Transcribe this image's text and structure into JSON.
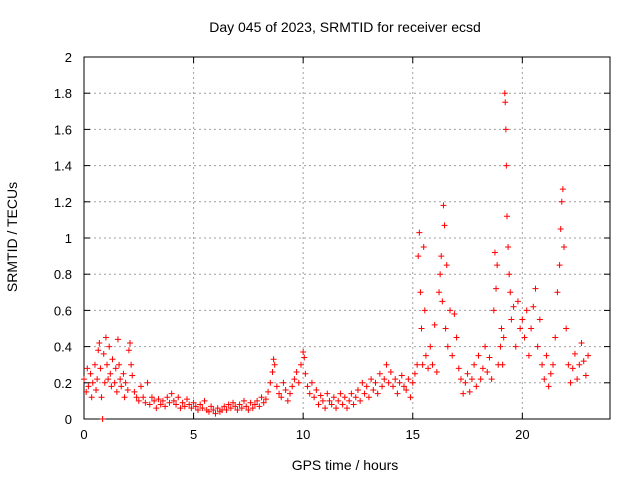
{
  "chart_data": {
    "type": "scatter",
    "title": "Day 045 of 2023, SRMTID for receiver ecsd",
    "xlabel": "GPS time / hours",
    "ylabel": "SRMTID / TECUs",
    "xlim": [
      0,
      24
    ],
    "ylim": [
      0,
      2
    ],
    "xticks": [
      0,
      5,
      10,
      15,
      20
    ],
    "yticks": [
      0,
      0.2,
      0.4,
      0.6,
      0.8,
      1,
      1.2,
      1.4,
      1.6,
      1.8,
      2
    ],
    "ytick_labels": [
      "0",
      "0.2",
      "0.4",
      "0.6",
      "0.8",
      "1",
      "1.2",
      "1.4",
      "1.6",
      "1.8",
      "2"
    ],
    "grid": true,
    "marker": "+",
    "colors": {
      "points": "#ff0000",
      "grid": "#a0a0a0",
      "axes": "#000000"
    },
    "series": [
      {
        "name": "ecsd",
        "points": [
          [
            0.0,
            0.22
          ],
          [
            0.1,
            0.15
          ],
          [
            0.15,
            0.28
          ],
          [
            0.2,
            0.18
          ],
          [
            0.3,
            0.25
          ],
          [
            0.35,
            0.12
          ],
          [
            0.4,
            0.2
          ],
          [
            0.5,
            0.3
          ],
          [
            0.55,
            0.16
          ],
          [
            0.6,
            0.22
          ],
          [
            0.65,
            0.38
          ],
          [
            0.7,
            0.42
          ],
          [
            0.75,
            0.28
          ],
          [
            0.8,
            0.12
          ],
          [
            0.85,
            0.0
          ],
          [
            0.9,
            0.36
          ],
          [
            0.95,
            0.2
          ],
          [
            1.0,
            0.45
          ],
          [
            1.05,
            0.3
          ],
          [
            1.1,
            0.22
          ],
          [
            1.15,
            0.4
          ],
          [
            1.2,
            0.25
          ],
          [
            1.25,
            0.18
          ],
          [
            1.3,
            0.33
          ],
          [
            1.4,
            0.2
          ],
          [
            1.45,
            0.28
          ],
          [
            1.5,
            0.15
          ],
          [
            1.55,
            0.44
          ],
          [
            1.6,
            0.3
          ],
          [
            1.65,
            0.22
          ],
          [
            1.7,
            0.18
          ],
          [
            1.8,
            0.25
          ],
          [
            1.85,
            0.12
          ],
          [
            1.9,
            0.2
          ],
          [
            2.0,
            0.16
          ],
          [
            2.05,
            0.38
          ],
          [
            2.1,
            0.42
          ],
          [
            2.15,
            0.3
          ],
          [
            2.2,
            0.24
          ],
          [
            2.3,
            0.15
          ],
          [
            2.4,
            0.12
          ],
          [
            2.5,
            0.1
          ],
          [
            2.6,
            0.18
          ],
          [
            2.7,
            0.12
          ],
          [
            2.8,
            0.09
          ],
          [
            2.9,
            0.2
          ],
          [
            3.0,
            0.08
          ],
          [
            3.1,
            0.12
          ],
          [
            3.2,
            0.1
          ],
          [
            3.3,
            0.06
          ],
          [
            3.4,
            0.11
          ],
          [
            3.5,
            0.08
          ],
          [
            3.6,
            0.1
          ],
          [
            3.7,
            0.07
          ],
          [
            3.8,
            0.12
          ],
          [
            3.9,
            0.09
          ],
          [
            4.0,
            0.14
          ],
          [
            4.1,
            0.1
          ],
          [
            4.2,
            0.08
          ],
          [
            4.3,
            0.12
          ],
          [
            4.4,
            0.06
          ],
          [
            4.5,
            0.09
          ],
          [
            4.6,
            0.07
          ],
          [
            4.7,
            0.11
          ],
          [
            4.8,
            0.08
          ],
          [
            4.9,
            0.06
          ],
          [
            5.0,
            0.09
          ],
          [
            5.1,
            0.07
          ],
          [
            5.2,
            0.05
          ],
          [
            5.3,
            0.08
          ],
          [
            5.4,
            0.06
          ],
          [
            5.5,
            0.1
          ],
          [
            5.6,
            0.05
          ],
          [
            5.7,
            0.04
          ],
          [
            5.8,
            0.07
          ],
          [
            5.9,
            0.05
          ],
          [
            6.0,
            0.03
          ],
          [
            6.1,
            0.06
          ],
          [
            6.2,
            0.04
          ],
          [
            6.3,
            0.05
          ],
          [
            6.4,
            0.07
          ],
          [
            6.5,
            0.05
          ],
          [
            6.6,
            0.08
          ],
          [
            6.7,
            0.06
          ],
          [
            6.8,
            0.09
          ],
          [
            6.9,
            0.07
          ],
          [
            7.0,
            0.05
          ],
          [
            7.1,
            0.08
          ],
          [
            7.2,
            0.06
          ],
          [
            7.3,
            0.1
          ],
          [
            7.4,
            0.07
          ],
          [
            7.5,
            0.05
          ],
          [
            7.6,
            0.09
          ],
          [
            7.7,
            0.06
          ],
          [
            7.8,
            0.08
          ],
          [
            7.9,
            0.1
          ],
          [
            8.0,
            0.07
          ],
          [
            8.1,
            0.12
          ],
          [
            8.2,
            0.09
          ],
          [
            8.3,
            0.11
          ],
          [
            8.4,
            0.15
          ],
          [
            8.5,
            0.2
          ],
          [
            8.6,
            0.26
          ],
          [
            8.65,
            0.33
          ],
          [
            8.7,
            0.3
          ],
          [
            8.8,
            0.18
          ],
          [
            8.9,
            0.14
          ],
          [
            9.0,
            0.12
          ],
          [
            9.1,
            0.2
          ],
          [
            9.2,
            0.16
          ],
          [
            9.3,
            0.1
          ],
          [
            9.4,
            0.14
          ],
          [
            9.5,
            0.18
          ],
          [
            9.6,
            0.22
          ],
          [
            9.7,
            0.26
          ],
          [
            9.8,
            0.2
          ],
          [
            9.9,
            0.3
          ],
          [
            10.0,
            0.37
          ],
          [
            10.05,
            0.34
          ],
          [
            10.1,
            0.25
          ],
          [
            10.2,
            0.18
          ],
          [
            10.3,
            0.14
          ],
          [
            10.4,
            0.2
          ],
          [
            10.5,
            0.12
          ],
          [
            10.6,
            0.16
          ],
          [
            10.7,
            0.08
          ],
          [
            10.8,
            0.13
          ],
          [
            10.9,
            0.1
          ],
          [
            11.0,
            0.06
          ],
          [
            11.1,
            0.14
          ],
          [
            11.2,
            0.1
          ],
          [
            11.3,
            0.08
          ],
          [
            11.4,
            0.12
          ],
          [
            11.5,
            0.06
          ],
          [
            11.6,
            0.1
          ],
          [
            11.7,
            0.14
          ],
          [
            11.8,
            0.08
          ],
          [
            11.9,
            0.12
          ],
          [
            12.0,
            0.06
          ],
          [
            12.1,
            0.1
          ],
          [
            12.2,
            0.14
          ],
          [
            12.3,
            0.08
          ],
          [
            12.4,
            0.12
          ],
          [
            12.5,
            0.16
          ],
          [
            12.6,
            0.1
          ],
          [
            12.7,
            0.2
          ],
          [
            12.8,
            0.14
          ],
          [
            12.9,
            0.18
          ],
          [
            13.0,
            0.12
          ],
          [
            13.1,
            0.22
          ],
          [
            13.2,
            0.16
          ],
          [
            13.3,
            0.2
          ],
          [
            13.4,
            0.14
          ],
          [
            13.5,
            0.25
          ],
          [
            13.6,
            0.18
          ],
          [
            13.7,
            0.22
          ],
          [
            13.8,
            0.3
          ],
          [
            13.9,
            0.2
          ],
          [
            14.0,
            0.26
          ],
          [
            14.1,
            0.18
          ],
          [
            14.2,
            0.22
          ],
          [
            14.3,
            0.14
          ],
          [
            14.4,
            0.2
          ],
          [
            14.5,
            0.24
          ],
          [
            14.6,
            0.18
          ],
          [
            14.7,
            0.16
          ],
          [
            14.8,
            0.22
          ],
          [
            14.9,
            0.12
          ],
          [
            15.0,
            0.2
          ],
          [
            15.1,
            0.25
          ],
          [
            15.2,
            0.3
          ],
          [
            15.25,
            0.9
          ],
          [
            15.3,
            1.03
          ],
          [
            15.35,
            0.7
          ],
          [
            15.4,
            0.5
          ],
          [
            15.45,
            0.3
          ],
          [
            15.5,
            0.95
          ],
          [
            15.55,
            0.6
          ],
          [
            15.6,
            0.35
          ],
          [
            15.7,
            0.28
          ],
          [
            15.8,
            0.4
          ],
          [
            15.9,
            0.3
          ],
          [
            16.0,
            0.52
          ],
          [
            16.1,
            0.26
          ],
          [
            16.2,
            0.7
          ],
          [
            16.25,
            0.8
          ],
          [
            16.3,
            0.9
          ],
          [
            16.35,
            0.65
          ],
          [
            16.4,
            1.18
          ],
          [
            16.45,
            1.07
          ],
          [
            16.5,
            0.5
          ],
          [
            16.55,
            0.85
          ],
          [
            16.6,
            0.4
          ],
          [
            16.7,
            0.6
          ],
          [
            16.8,
            0.35
          ],
          [
            16.9,
            0.58
          ],
          [
            17.0,
            0.45
          ],
          [
            17.1,
            0.28
          ],
          [
            17.2,
            0.22
          ],
          [
            17.3,
            0.14
          ],
          [
            17.4,
            0.2
          ],
          [
            17.5,
            0.25
          ],
          [
            17.6,
            0.15
          ],
          [
            17.7,
            0.22
          ],
          [
            17.8,
            0.3
          ],
          [
            17.9,
            0.18
          ],
          [
            18.0,
            0.35
          ],
          [
            18.1,
            0.22
          ],
          [
            18.2,
            0.28
          ],
          [
            18.3,
            0.4
          ],
          [
            18.4,
            0.26
          ],
          [
            18.5,
            0.34
          ],
          [
            18.6,
            0.22
          ],
          [
            18.7,
            0.6
          ],
          [
            18.75,
            0.92
          ],
          [
            18.8,
            0.72
          ],
          [
            18.85,
            0.85
          ],
          [
            18.9,
            0.3
          ],
          [
            19.0,
            0.4
          ],
          [
            19.05,
            0.5
          ],
          [
            19.1,
            0.3
          ],
          [
            19.15,
            0.45
          ],
          [
            19.2,
            1.8
          ],
          [
            19.22,
            1.75
          ],
          [
            19.25,
            1.6
          ],
          [
            19.27,
            1.4
          ],
          [
            19.3,
            1.12
          ],
          [
            19.35,
            0.95
          ],
          [
            19.4,
            0.8
          ],
          [
            19.45,
            0.7
          ],
          [
            19.5,
            0.55
          ],
          [
            19.6,
            0.62
          ],
          [
            19.7,
            0.4
          ],
          [
            19.8,
            0.65
          ],
          [
            19.9,
            0.5
          ],
          [
            20.0,
            0.55
          ],
          [
            20.1,
            0.45
          ],
          [
            20.2,
            0.6
          ],
          [
            20.3,
            0.35
          ],
          [
            20.4,
            0.5
          ],
          [
            20.5,
            0.62
          ],
          [
            20.6,
            0.72
          ],
          [
            20.7,
            0.4
          ],
          [
            20.8,
            0.55
          ],
          [
            20.9,
            0.3
          ],
          [
            21.0,
            0.22
          ],
          [
            21.1,
            0.35
          ],
          [
            21.2,
            0.18
          ],
          [
            21.3,
            0.25
          ],
          [
            21.4,
            0.3
          ],
          [
            21.5,
            0.45
          ],
          [
            21.6,
            0.7
          ],
          [
            21.7,
            0.85
          ],
          [
            21.75,
            1.05
          ],
          [
            21.8,
            1.2
          ],
          [
            21.85,
            1.27
          ],
          [
            21.9,
            0.95
          ],
          [
            22.0,
            0.5
          ],
          [
            22.1,
            0.3
          ],
          [
            22.2,
            0.2
          ],
          [
            22.3,
            0.28
          ],
          [
            22.4,
            0.36
          ],
          [
            22.5,
            0.22
          ],
          [
            22.6,
            0.3
          ],
          [
            22.7,
            0.42
          ],
          [
            22.8,
            0.32
          ],
          [
            22.9,
            0.24
          ],
          [
            23.0,
            0.35
          ]
        ]
      }
    ]
  }
}
